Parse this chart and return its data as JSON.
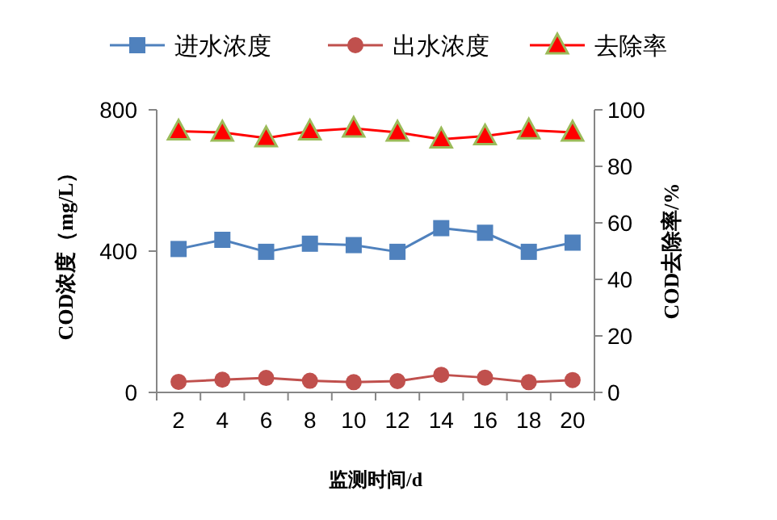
{
  "chart_data": {
    "type": "line",
    "xlabel": "监测时间/d",
    "ylabel": "COD浓度（mg/L）",
    "y2label": "COD去除率/%",
    "categories": [
      "2",
      "4",
      "6",
      "8",
      "10",
      "12",
      "14",
      "16",
      "18",
      "20"
    ],
    "series": [
      {
        "name": "进水浓度",
        "color": "#4f81bd",
        "marker": "square",
        "values": [
          406,
          432,
          398,
          421,
          417,
          398,
          465,
          452,
          398,
          424
        ]
      },
      {
        "name": "出水浓度",
        "color": "#c0504d",
        "marker": "circle",
        "values": [
          30,
          36,
          41,
          33,
          29,
          32,
          50,
          42,
          29,
          35
        ]
      },
      {
        "name": "去除率",
        "color": "#ff0000",
        "marker": "triangle",
        "axis": "y2",
        "values": [
          92.4,
          92,
          90,
          92.4,
          93.4,
          92,
          89.6,
          90.7,
          92.8,
          92
        ]
      }
    ],
    "ylim": [
      0,
      800
    ],
    "yticks": [
      0,
      400,
      800
    ],
    "y2lim": [
      0,
      100
    ],
    "y2ticks": [
      0,
      20,
      40,
      60,
      80,
      100
    ],
    "grid": false,
    "legend": "top"
  }
}
